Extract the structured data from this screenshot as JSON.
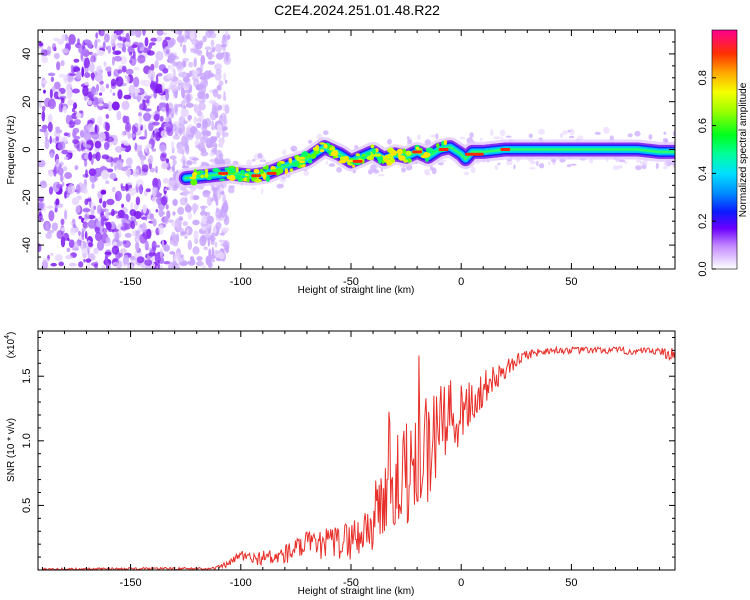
{
  "title": "C2E4.2024.251.01.48.R22",
  "colors": {
    "snr_line": "#e8302a",
    "colormap": [
      "#ffffff",
      "#e9d8ff",
      "#c9a6ff",
      "#a566ff",
      "#7d1fef",
      "#3b00ff",
      "#0050ff",
      "#00b4ff",
      "#00f0d0",
      "#00ff6a",
      "#5aff00",
      "#c8ff00",
      "#ffe600",
      "#ff8c00",
      "#ff2a00",
      "#ff00a0"
    ]
  },
  "chart_data": [
    {
      "type": "heatmap",
      "name": "spectrogram",
      "xlabel": "Height of straight line (km)",
      "ylabel": "Frequency (Hz)",
      "xlim": [
        -192,
        97
      ],
      "ylim": [
        -50,
        50
      ],
      "xticks": [
        -150,
        -100,
        -50,
        0,
        50
      ],
      "yticks": [
        -40,
        -20,
        0,
        20,
        40
      ],
      "noise_region_x": [
        -192,
        -112
      ],
      "signal_track": {
        "x": [
          -125,
          -115,
          -105,
          -95,
          -88,
          -80,
          -70,
          -62,
          -55,
          -50,
          -45,
          -40,
          -35,
          -30,
          -25,
          -20,
          -15,
          -10,
          -5,
          0,
          2,
          5,
          10,
          20,
          30,
          40,
          50,
          60,
          70,
          80,
          90,
          97
        ],
        "freq": [
          -12,
          -11,
          -10,
          -11,
          -10,
          -7,
          -4,
          1,
          -2,
          -5,
          -3,
          -1,
          -4,
          -2,
          -3,
          -1,
          -3,
          0,
          1,
          -2,
          -4,
          -1,
          -1,
          0,
          0,
          0,
          0,
          0,
          0,
          0,
          -1,
          -1
        ]
      },
      "colorbar": {
        "label": "Normalized spectral amplitude",
        "range": [
          0,
          1
        ],
        "ticks": [
          "0.0",
          "0.2",
          "0.4",
          "0.6",
          "0.8"
        ]
      }
    },
    {
      "type": "line",
      "name": "snr",
      "xlabel": "Height of straight line (km)",
      "ylabel": "SNR (10 * v/v)",
      "exponent_label": "(x10",
      "exponent_power": "4",
      "exponent_close": ")",
      "xlim": [
        -192,
        97
      ],
      "ylim": [
        0,
        1.85
      ],
      "xticks": [
        -150,
        -100,
        -50,
        0,
        50
      ],
      "yticks": [
        "0.5",
        "1.0",
        "1.5"
      ],
      "envelope": {
        "x": [
          -192,
          -150,
          -112,
          -105,
          -100,
          -95,
          -90,
          -85,
          -80,
          -75,
          -70,
          -65,
          -60,
          -55,
          -50,
          -45,
          -40,
          -35,
          -30,
          -25,
          -20,
          -15,
          -10,
          -5,
          0,
          5,
          10,
          15,
          20,
          25,
          30,
          40,
          50,
          60,
          70,
          80,
          90,
          97
        ],
        "snr": [
          0.005,
          0.01,
          0.012,
          0.05,
          0.12,
          0.08,
          0.1,
          0.09,
          0.12,
          0.16,
          0.2,
          0.18,
          0.22,
          0.21,
          0.24,
          0.28,
          0.38,
          0.55,
          0.65,
          0.75,
          0.88,
          0.9,
          1.05,
          1.15,
          1.18,
          1.3,
          1.4,
          1.48,
          1.55,
          1.62,
          1.67,
          1.7,
          1.7,
          1.7,
          1.7,
          1.69,
          1.69,
          1.68
        ]
      },
      "noise_amp": {
        "x": [
          -192,
          -112,
          -100,
          -80,
          -60,
          -45,
          -35,
          -25,
          -15,
          -5,
          5,
          15,
          25,
          40,
          90,
          97
        ],
        "amp": [
          0.008,
          0.01,
          0.04,
          0.08,
          0.12,
          0.18,
          0.35,
          0.42,
          0.45,
          0.32,
          0.18,
          0.1,
          0.05,
          0.025,
          0.03,
          0.08
        ]
      }
    }
  ]
}
